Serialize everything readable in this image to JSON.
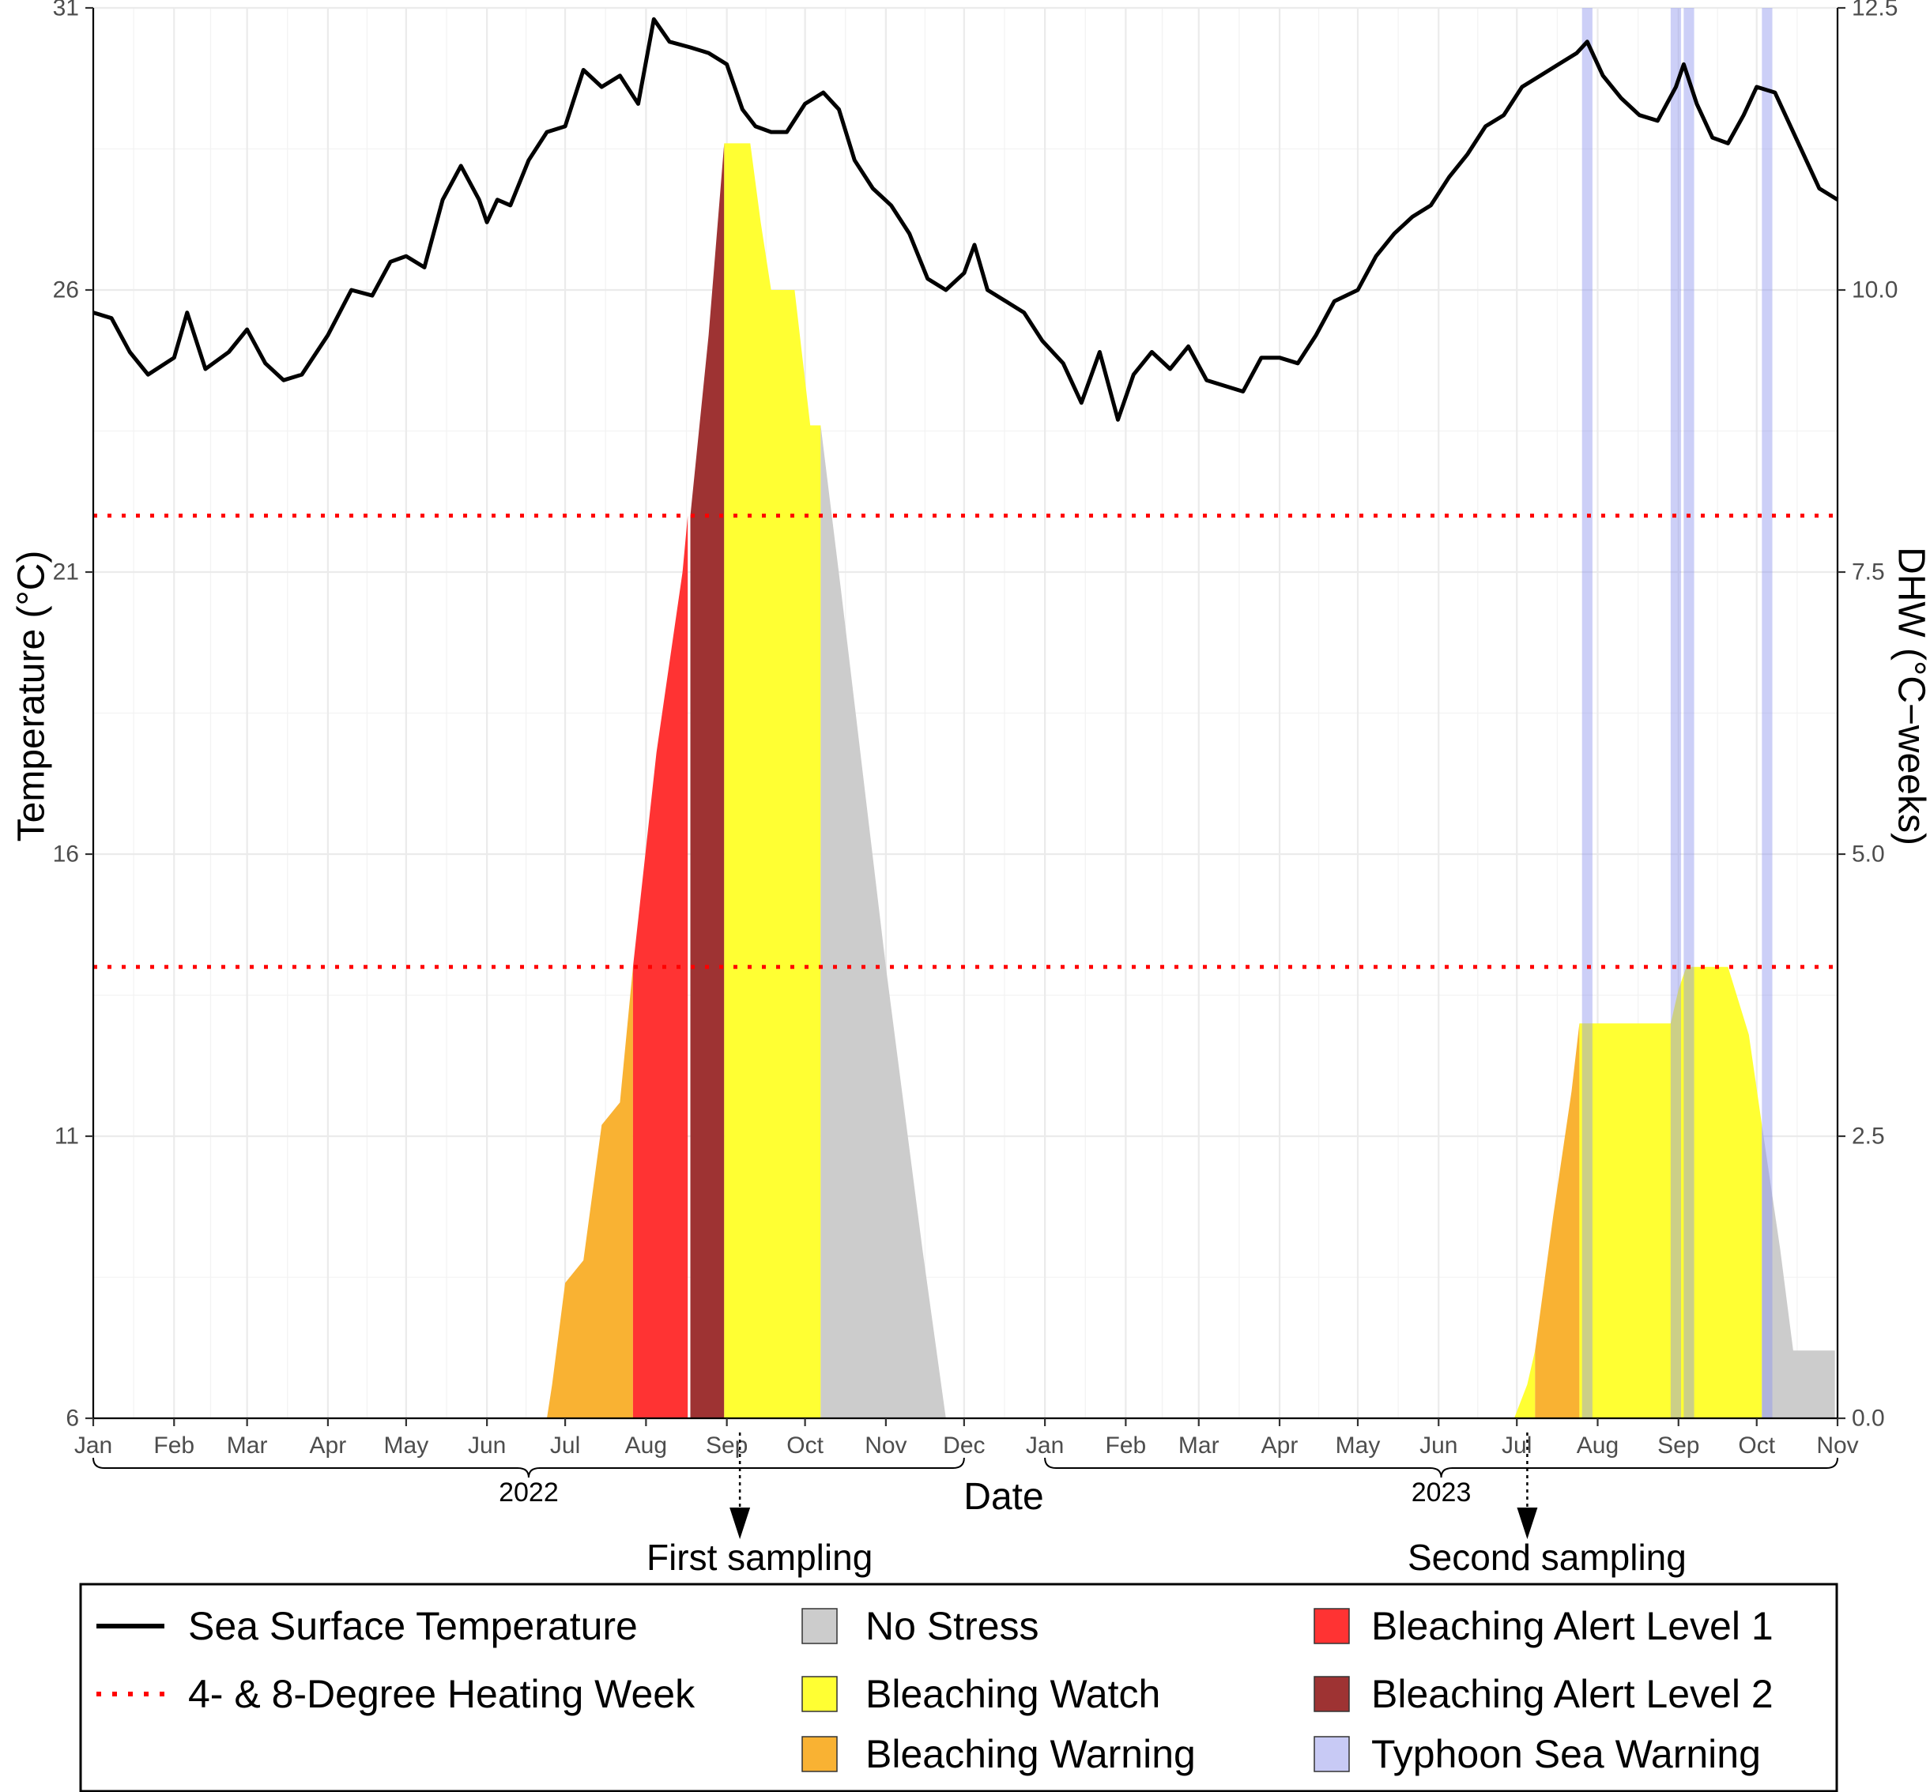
{
  "chart_data": {
    "type": "area",
    "xlabel": "Date",
    "ylabel": "Temperature (°C)",
    "y2label": "DHW (°C−weeks)",
    "x_range": [
      "2022-01-01",
      "2023-11-01"
    ],
    "ylim": [
      6,
      31
    ],
    "y2lim": [
      0,
      12.5
    ],
    "yticks": [
      "6",
      "11",
      "16",
      "21",
      "26",
      "31"
    ],
    "y2ticks": [
      "0.0",
      "2.5",
      "5.0",
      "7.5",
      "10.0",
      "12.5"
    ],
    "month_ticks": [
      {
        "label": "Jan",
        "date": "2022-01-01"
      },
      {
        "label": "Feb",
        "date": "2022-02-01"
      },
      {
        "label": "Mar",
        "date": "2022-03-01"
      },
      {
        "label": "Apr",
        "date": "2022-04-01"
      },
      {
        "label": "May",
        "date": "2022-05-01"
      },
      {
        "label": "Jun",
        "date": "2022-06-01"
      },
      {
        "label": "Jul",
        "date": "2022-07-01"
      },
      {
        "label": "Aug",
        "date": "2022-08-01"
      },
      {
        "label": "Sep",
        "date": "2022-09-01"
      },
      {
        "label": "Oct",
        "date": "2022-10-01"
      },
      {
        "label": "Nov",
        "date": "2022-11-01"
      },
      {
        "label": "Dec",
        "date": "2022-12-01"
      },
      {
        "label": "Jan",
        "date": "2023-01-01"
      },
      {
        "label": "Feb",
        "date": "2023-02-01"
      },
      {
        "label": "Mar",
        "date": "2023-03-01"
      },
      {
        "label": "Apr",
        "date": "2023-04-01"
      },
      {
        "label": "May",
        "date": "2023-05-01"
      },
      {
        "label": "Jun",
        "date": "2023-06-01"
      },
      {
        "label": "Jul",
        "date": "2023-07-01"
      },
      {
        "label": "Aug",
        "date": "2023-08-01"
      },
      {
        "label": "Sep",
        "date": "2023-09-01"
      },
      {
        "label": "Oct",
        "date": "2023-10-01"
      },
      {
        "label": "Nov",
        "date": "2023-11-01"
      }
    ],
    "year_groups": [
      {
        "label": "2022",
        "start": "2022-01-01",
        "end": "2022-12-01"
      },
      {
        "label": "2023",
        "start": "2023-01-01",
        "end": "2023-11-01"
      }
    ],
    "dhw_reference_lines": [
      4,
      8
    ],
    "sst_series": {
      "name": "Sea Surface Temperature",
      "points": [
        [
          "2022-01-01",
          25.6
        ],
        [
          "2022-01-08",
          25.5
        ],
        [
          "2022-01-15",
          24.9
        ],
        [
          "2022-01-22",
          24.5
        ],
        [
          "2022-02-01",
          24.8
        ],
        [
          "2022-02-06",
          25.6
        ],
        [
          "2022-02-13",
          24.6
        ],
        [
          "2022-02-22",
          24.9
        ],
        [
          "2022-03-01",
          25.3
        ],
        [
          "2022-03-08",
          24.7
        ],
        [
          "2022-03-15",
          24.4
        ],
        [
          "2022-03-22",
          24.5
        ],
        [
          "2022-04-01",
          25.2
        ],
        [
          "2022-04-10",
          26.0
        ],
        [
          "2022-04-18",
          25.9
        ],
        [
          "2022-04-25",
          26.5
        ],
        [
          "2022-05-01",
          26.6
        ],
        [
          "2022-05-08",
          26.4
        ],
        [
          "2022-05-15",
          27.6
        ],
        [
          "2022-05-22",
          28.2
        ],
        [
          "2022-05-29",
          27.6
        ],
        [
          "2022-06-01",
          27.2
        ],
        [
          "2022-06-05",
          27.6
        ],
        [
          "2022-06-10",
          27.5
        ],
        [
          "2022-06-17",
          28.3
        ],
        [
          "2022-06-24",
          28.8
        ],
        [
          "2022-07-01",
          28.9
        ],
        [
          "2022-07-08",
          29.9
        ],
        [
          "2022-07-15",
          29.6
        ],
        [
          "2022-07-22",
          29.8
        ],
        [
          "2022-07-29",
          29.3
        ],
        [
          "2022-08-04",
          30.8
        ],
        [
          "2022-08-10",
          30.4
        ],
        [
          "2022-08-18",
          30.3
        ],
        [
          "2022-08-25",
          30.2
        ],
        [
          "2022-09-01",
          30.0
        ],
        [
          "2022-09-07",
          29.2
        ],
        [
          "2022-09-12",
          28.9
        ],
        [
          "2022-09-18",
          28.8
        ],
        [
          "2022-09-24",
          28.8
        ],
        [
          "2022-10-01",
          29.3
        ],
        [
          "2022-10-08",
          29.5
        ],
        [
          "2022-10-14",
          29.2
        ],
        [
          "2022-10-20",
          28.3
        ],
        [
          "2022-10-27",
          27.8
        ],
        [
          "2022-11-03",
          27.5
        ],
        [
          "2022-11-10",
          27.0
        ],
        [
          "2022-11-17",
          26.2
        ],
        [
          "2022-11-24",
          26.0
        ],
        [
          "2022-12-01",
          26.3
        ],
        [
          "2022-12-05",
          26.8
        ],
        [
          "2022-12-10",
          26.0
        ],
        [
          "2022-12-17",
          25.8
        ],
        [
          "2022-12-24",
          25.6
        ],
        [
          "2022-12-31",
          25.1
        ],
        [
          "2023-01-08",
          24.7
        ],
        [
          "2023-01-15",
          24.0
        ],
        [
          "2023-01-22",
          24.9
        ],
        [
          "2023-01-29",
          23.7
        ],
        [
          "2023-02-04",
          24.5
        ],
        [
          "2023-02-11",
          24.9
        ],
        [
          "2023-02-18",
          24.6
        ],
        [
          "2023-02-25",
          25.0
        ],
        [
          "2023-03-04",
          24.4
        ],
        [
          "2023-03-11",
          24.3
        ],
        [
          "2023-03-18",
          24.2
        ],
        [
          "2023-03-25",
          24.8
        ],
        [
          "2023-04-01",
          24.8
        ],
        [
          "2023-04-08",
          24.7
        ],
        [
          "2023-04-15",
          25.2
        ],
        [
          "2023-04-22",
          25.8
        ],
        [
          "2023-05-01",
          26.0
        ],
        [
          "2023-05-08",
          26.6
        ],
        [
          "2023-05-15",
          27.0
        ],
        [
          "2023-05-22",
          27.3
        ],
        [
          "2023-05-29",
          27.5
        ],
        [
          "2023-06-05",
          28.0
        ],
        [
          "2023-06-12",
          28.4
        ],
        [
          "2023-06-19",
          28.9
        ],
        [
          "2023-06-26",
          29.1
        ],
        [
          "2023-07-03",
          29.6
        ],
        [
          "2023-07-10",
          29.8
        ],
        [
          "2023-07-17",
          30.0
        ],
        [
          "2023-07-24",
          30.2
        ],
        [
          "2023-07-28",
          30.4
        ],
        [
          "2023-08-03",
          29.8
        ],
        [
          "2023-08-10",
          29.4
        ],
        [
          "2023-08-17",
          29.1
        ],
        [
          "2023-08-24",
          29.0
        ],
        [
          "2023-08-31",
          29.6
        ],
        [
          "2023-09-03",
          30.0
        ],
        [
          "2023-09-08",
          29.3
        ],
        [
          "2023-09-14",
          28.7
        ],
        [
          "2023-09-20",
          28.6
        ],
        [
          "2023-09-26",
          29.1
        ],
        [
          "2023-10-01",
          29.6
        ],
        [
          "2023-10-08",
          29.5
        ],
        [
          "2023-10-15",
          28.8
        ],
        [
          "2023-10-20",
          28.3
        ],
        [
          "2023-10-25",
          27.8
        ],
        [
          "2023-11-01",
          27.6
        ]
      ]
    },
    "dhw_series": [
      {
        "name": "Bleaching Warning",
        "color": "#f9b233",
        "points": [
          [
            "2022-06-24",
            0.0
          ],
          [
            "2022-06-26",
            0.3
          ],
          [
            "2022-07-01",
            1.2
          ],
          [
            "2022-07-08",
            1.4
          ],
          [
            "2022-07-15",
            2.6
          ],
          [
            "2022-07-22",
            2.8
          ],
          [
            "2022-07-27",
            4.0
          ]
        ]
      },
      {
        "name": "Bleaching Alert Level 1",
        "color": "#ff3333",
        "points": [
          [
            "2022-07-27",
            4.0
          ],
          [
            "2022-08-05",
            5.9
          ],
          [
            "2022-08-15",
            7.5
          ],
          [
            "2022-08-17",
            8.0
          ]
        ]
      },
      {
        "name": "Bleaching Alert Level 2",
        "color": "#9e3333",
        "points": [
          [
            "2022-08-18",
            8.0
          ],
          [
            "2022-08-25",
            9.6
          ],
          [
            "2022-08-31",
            11.3
          ]
        ]
      },
      {
        "name": "Bleaching Watch",
        "color": "#ffff33",
        "points": [
          [
            "2022-08-31",
            11.3
          ],
          [
            "2022-09-10",
            11.3
          ],
          [
            "2022-09-14",
            10.6
          ],
          [
            "2022-09-18",
            10.0
          ],
          [
            "2022-09-27",
            10.0
          ],
          [
            "2022-10-03",
            8.8
          ],
          [
            "2022-10-07",
            8.8
          ]
        ]
      },
      {
        "name": "No Stress",
        "color": "#cccccc",
        "points": [
          [
            "2022-10-07",
            8.8
          ],
          [
            "2022-10-15",
            7.3
          ],
          [
            "2022-11-01",
            4.0
          ],
          [
            "2022-11-15",
            1.5
          ],
          [
            "2022-11-24",
            0.0
          ]
        ]
      },
      {
        "name": "Bleaching Watch",
        "color": "#ffff33",
        "points": [
          [
            "2023-06-30",
            0.0
          ],
          [
            "2023-07-05",
            0.3
          ],
          [
            "2023-07-08",
            0.6
          ]
        ]
      },
      {
        "name": "Bleaching Warning",
        "color": "#f9b233",
        "points": [
          [
            "2023-07-08",
            0.6
          ],
          [
            "2023-07-15",
            1.8
          ],
          [
            "2023-07-22",
            2.9
          ],
          [
            "2023-07-25",
            3.5
          ]
        ]
      },
      {
        "name": "Bleaching Watch",
        "color": "#ffff33",
        "points": [
          [
            "2023-07-25",
            3.5
          ],
          [
            "2023-08-29",
            3.5
          ],
          [
            "2023-09-01",
            3.8
          ],
          [
            "2023-09-04",
            4.0
          ],
          [
            "2023-09-20",
            4.0
          ],
          [
            "2023-09-24",
            3.7
          ],
          [
            "2023-09-28",
            3.4
          ],
          [
            "2023-10-03",
            2.6
          ]
        ]
      },
      {
        "name": "No Stress",
        "color": "#cccccc",
        "points": [
          [
            "2023-10-03",
            2.6
          ],
          [
            "2023-10-10",
            1.5
          ],
          [
            "2023-10-15",
            0.6
          ],
          [
            "2023-10-31",
            0.6
          ]
        ]
      }
    ],
    "typhoon_bands": [
      {
        "start": "2023-07-26",
        "end": "2023-07-30"
      },
      {
        "start": "2023-08-29",
        "end": "2023-09-02"
      },
      {
        "start": "2023-09-03",
        "end": "2023-09-07"
      },
      {
        "start": "2023-10-03",
        "end": "2023-10-07"
      }
    ],
    "sampling": [
      {
        "label": "First sampling",
        "date": "2022-09-06"
      },
      {
        "label": "Second sampling",
        "date": "2023-07-05"
      }
    ],
    "legend": {
      "placement": "bottom",
      "line_items": [
        {
          "label": "Sea Surface Temperature",
          "style": "solid",
          "color": "#000000"
        },
        {
          "label": "4- & 8-Degree Heating Week",
          "style": "dotted",
          "color": "#ff0000"
        }
      ],
      "fill_items": [
        {
          "label": "No Stress",
          "color": "#cccccc"
        },
        {
          "label": "Bleaching Watch",
          "color": "#ffff33"
        },
        {
          "label": "Bleaching Warning",
          "color": "#f9b233"
        },
        {
          "label": "Bleaching Alert Level 1",
          "color": "#ff3333"
        },
        {
          "label": "Bleaching Alert Level 2",
          "color": "#9e3333"
        },
        {
          "label": "Typhoon Sea Warning",
          "color": "#c8caf5"
        }
      ]
    }
  }
}
